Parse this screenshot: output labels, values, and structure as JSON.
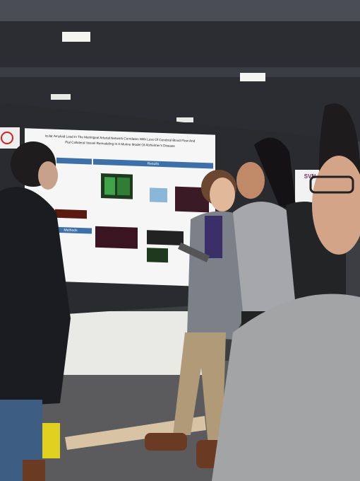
{
  "poster": {
    "title_line_1": "icular Amyloid Load In The Meningeal Arterial Network Correlates With Loss Of Cerebral Blood Flow And",
    "title_line_2": "Pial Collateral Vessel Remodeling In A Murine Model Of Alzheimer's Disease",
    "sections": [
      "Methods",
      "Results"
    ]
  },
  "sign": "SVN"
}
